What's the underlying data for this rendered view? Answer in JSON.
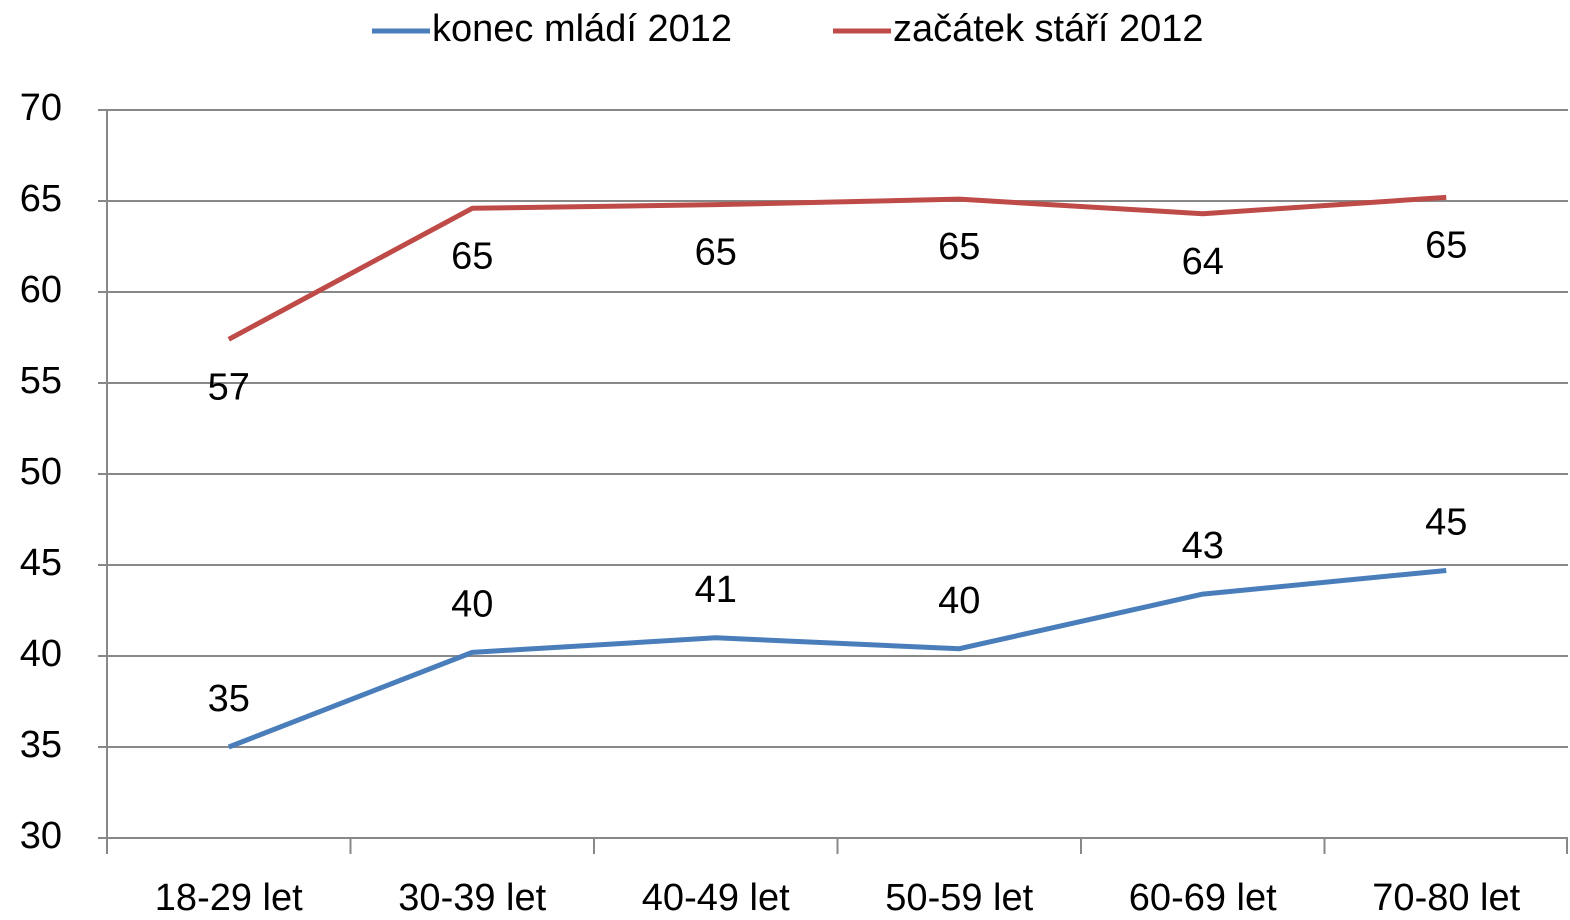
{
  "chart_data": {
    "type": "line",
    "categories": [
      "18-29 let",
      "30-39 let",
      "40-49 let",
      "50-59 let",
      "60-69 let",
      "70-80 let"
    ],
    "series": [
      {
        "name": "konec mládí 2012",
        "color": "#4a7ebb",
        "values": [
          35.0,
          40.2,
          41.0,
          40.4,
          43.4,
          44.7
        ],
        "value_labels": [
          "35",
          "40",
          "41",
          "40",
          "43",
          "45"
        ]
      },
      {
        "name": "začátek stáří 2012",
        "color": "#be4b48",
        "values": [
          57.4,
          64.6,
          64.8,
          65.1,
          64.3,
          65.2
        ],
        "value_labels": [
          "57",
          "65",
          "65",
          "65",
          "64",
          "65"
        ]
      }
    ],
    "ylim": [
      30,
      70
    ],
    "yticks": [
      30,
      35,
      40,
      45,
      50,
      55,
      60,
      65,
      70
    ],
    "grid": true,
    "legend": "top"
  }
}
